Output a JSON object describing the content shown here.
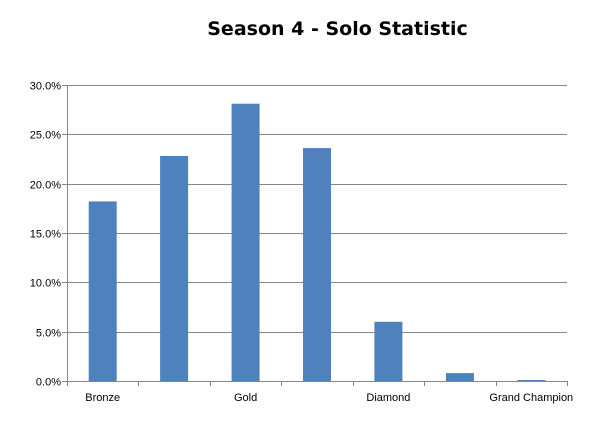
{
  "chart_data": {
    "type": "bar",
    "title": "Season 4 - Solo Statistic",
    "xlabel": "",
    "ylabel": "",
    "categories": [
      "Bronze",
      "",
      "Gold",
      "",
      "Diamond",
      "",
      "Grand Champion"
    ],
    "values": [
      18.2,
      22.8,
      28.1,
      23.6,
      6.0,
      0.8,
      0.1
    ],
    "ylim": [
      0,
      30
    ],
    "yticks": [
      0,
      5,
      10,
      15,
      20,
      25,
      30
    ],
    "ytick_labels": [
      "0.0%",
      "5.0%",
      "10.0%",
      "15.0%",
      "20.0%",
      "25.0%",
      "30.0%"
    ],
    "grid": true,
    "legend": "none",
    "bar_color": "#4f81bd",
    "grid_color": "#868686"
  }
}
